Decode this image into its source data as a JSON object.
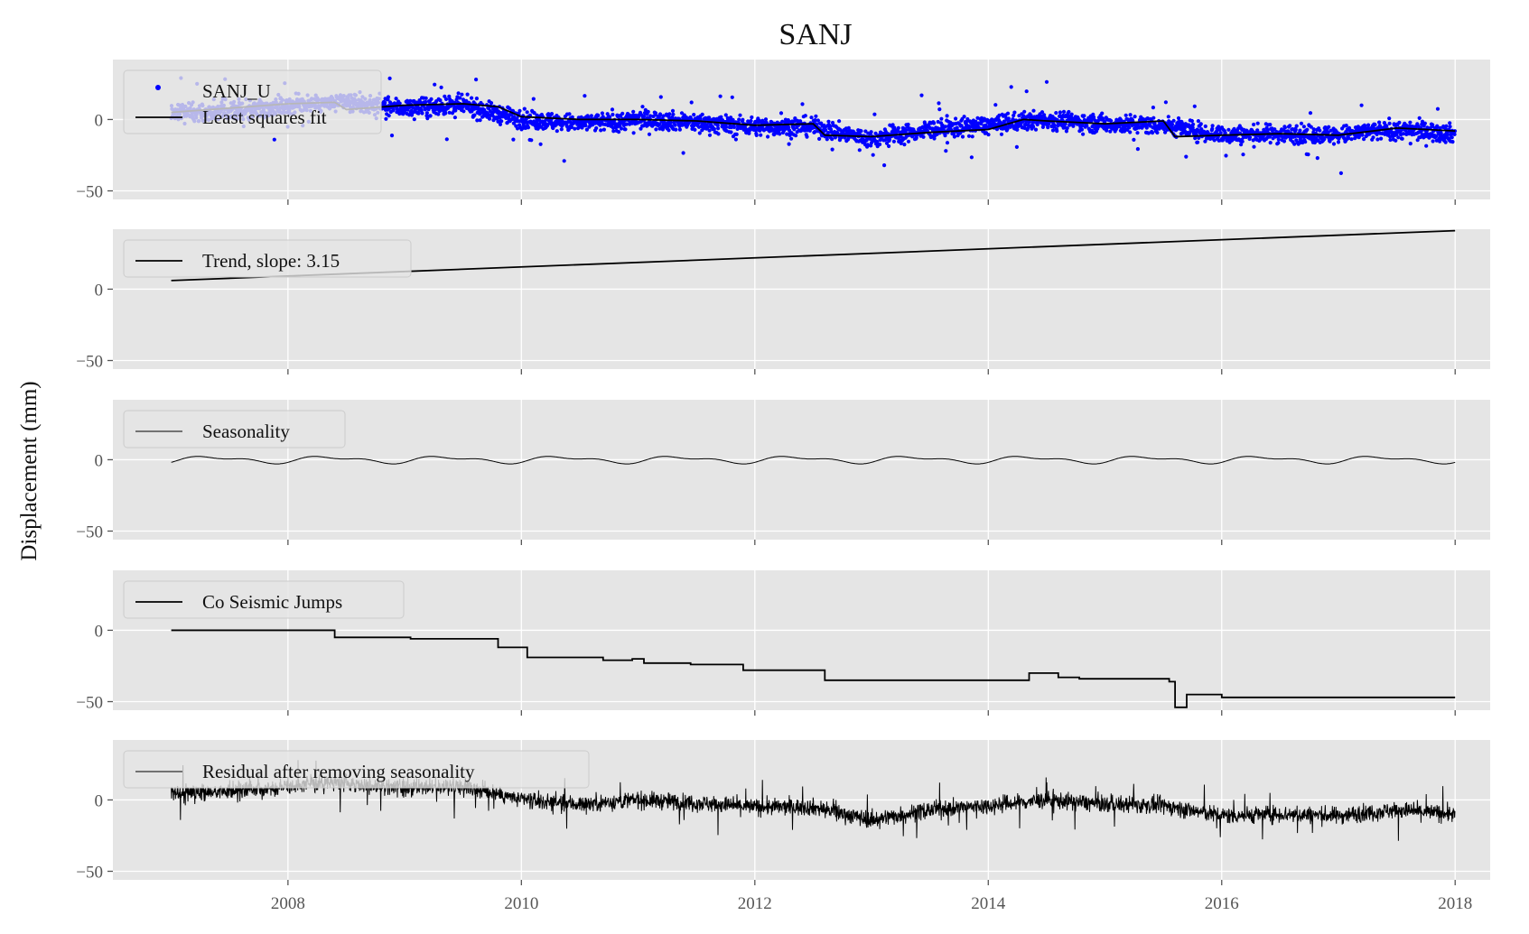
{
  "chart_data": {
    "type": "line",
    "title": "SANJ",
    "ylabel": "Displacement (mm)",
    "xlabel": "",
    "xlim": [
      2006.5,
      2018.3
    ],
    "x_ticks": [
      2008,
      2010,
      2012,
      2014,
      2016,
      2018
    ],
    "x_tick_labels": [
      "2008",
      "2010",
      "2012",
      "2014",
      "2016",
      "2018"
    ],
    "y_ticks": [
      0,
      -50
    ],
    "y_tick_labels": [
      "0",
      "−50"
    ],
    "grid": true,
    "background": "#e5e5e5",
    "panels": [
      {
        "id": "observed",
        "ylim": [
          -56,
          42
        ],
        "legend": "top-left",
        "series": [
          {
            "name": "SANJ_U",
            "kind": "scatter",
            "color": "#0000ff",
            "x": [
              2007.0,
              2007.5,
              2008.0,
              2008.5,
              2009.0,
              2009.5,
              2010.0,
              2010.5,
              2011.0,
              2011.5,
              2012.0,
              2012.5,
              2013.0,
              2013.5,
              2014.0,
              2014.5,
              2015.0,
              2015.5,
              2016.0,
              2016.5,
              2017.0,
              2017.5,
              2018.0
            ],
            "y": [
              5,
              6,
              10,
              12,
              8,
              10,
              0,
              -3,
              0,
              -2,
              -5,
              -5,
              -14,
              -7,
              -4,
              0,
              -3,
              -4,
              -11,
              -10,
              -11,
              -7,
              -10
            ]
          },
          {
            "name": "Least squares fit",
            "kind": "line",
            "color": "#000000",
            "x": [
              2007.0,
              2007.5,
              2008.0,
              2008.4,
              2008.5,
              2009.0,
              2009.5,
              2009.8,
              2010.0,
              2010.5,
              2011.0,
              2011.5,
              2012.0,
              2012.5,
              2012.6,
              2013.0,
              2013.5,
              2014.0,
              2014.3,
              2014.5,
              2015.0,
              2015.5,
              2015.6,
              2016.0,
              2016.5,
              2017.0,
              2017.5,
              2018.0
            ],
            "y": [
              5,
              8,
              11,
              12,
              7,
              10,
              11,
              9,
              2,
              0,
              0,
              -1,
              -4,
              -3,
              -11,
              -12,
              -9,
              -7,
              0,
              -1,
              -3,
              -1,
              -12,
              -11,
              -10,
              -11,
              -6,
              -8
            ]
          }
        ]
      },
      {
        "id": "trend",
        "ylim": [
          -56,
          42
        ],
        "legend": "top-left",
        "series": [
          {
            "name": "Trend, slope: 3.15",
            "kind": "line",
            "color": "#000000",
            "x": [
              2007.0,
              2018.0
            ],
            "y": [
              6,
              41
            ]
          }
        ]
      },
      {
        "id": "seasonality",
        "ylim": [
          -56,
          42
        ],
        "legend": "top-left",
        "series": [
          {
            "name": "Seasonality",
            "kind": "line",
            "color": "#000000",
            "amplitude": 2.5
          }
        ]
      },
      {
        "id": "jumps",
        "ylim": [
          -56,
          42
        ],
        "legend": "top-left",
        "series": [
          {
            "name": "Co Seismic Jumps",
            "kind": "step",
            "color": "#000000",
            "x": [
              2007.0,
              2008.4,
              2009.05,
              2009.8,
              2010.05,
              2010.7,
              2010.95,
              2011.05,
              2011.45,
              2011.9,
              2012.6,
              2014.35,
              2014.6,
              2014.78,
              2015.55,
              2015.6,
              2015.7,
              2016.0,
              2018.0
            ],
            "y": [
              0,
              -5,
              -6,
              -12,
              -19,
              -21,
              -20,
              -23,
              -24,
              -28,
              -35,
              -30,
              -33,
              -34,
              -36,
              -54,
              -45,
              -47,
              -47
            ]
          }
        ]
      },
      {
        "id": "residual",
        "ylim": [
          -56,
          42
        ],
        "legend": "top-left",
        "series": [
          {
            "name": "Residual after removing seasonality",
            "kind": "line",
            "color": "#000000",
            "x": [
              2007.0,
              2007.5,
              2008.0,
              2008.5,
              2009.0,
              2009.5,
              2010.0,
              2010.5,
              2011.0,
              2011.5,
              2012.0,
              2012.5,
              2013.0,
              2013.5,
              2014.0,
              2014.5,
              2015.0,
              2015.5,
              2016.0,
              2016.5,
              2017.0,
              2017.5,
              2018.0
            ],
            "y": [
              5,
              6,
              10,
              12,
              8,
              10,
              0,
              -3,
              0,
              -2,
              -5,
              -5,
              -14,
              -7,
              -4,
              0,
              -3,
              -4,
              -11,
              -10,
              -11,
              -7,
              -10
            ]
          }
        ]
      }
    ]
  }
}
